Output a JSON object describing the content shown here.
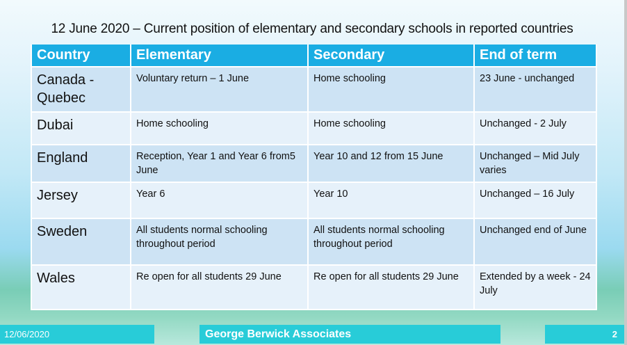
{
  "title": "12 June 2020 – Current position of elementary and secondary schools in reported countries",
  "table": {
    "headers": [
      "Country",
      "Elementary",
      "Secondary",
      "End of term"
    ],
    "rows": [
      [
        "Canada - Quebec",
        "Voluntary return – 1 June",
        "Home schooling",
        "23 June - unchanged"
      ],
      [
        "Dubai",
        "Home schooling",
        "Home schooling",
        "Unchanged -  2 July"
      ],
      [
        "England",
        "Reception, Year 1 and Year 6 from5 June",
        "Year 10 and 12 from 15 June",
        "Unchanged – Mid July varies"
      ],
      [
        "Jersey",
        "Year 6",
        "Year 10",
        "Unchanged – 16 July"
      ],
      [
        "Sweden",
        "All students normal schooling throughout period",
        "All students normal schooling throughout period",
        "Unchanged end of June"
      ],
      [
        "Wales",
        "Re open for all students 29 June",
        "Re open for all students 29 June",
        "Extended by a week  - 24 July"
      ]
    ]
  },
  "footer": {
    "date": "12/06/2020",
    "organization": "George Berwick Associates",
    "page_number": "2"
  },
  "colors": {
    "header": "#1aade3",
    "footer": "#28ccd8"
  }
}
